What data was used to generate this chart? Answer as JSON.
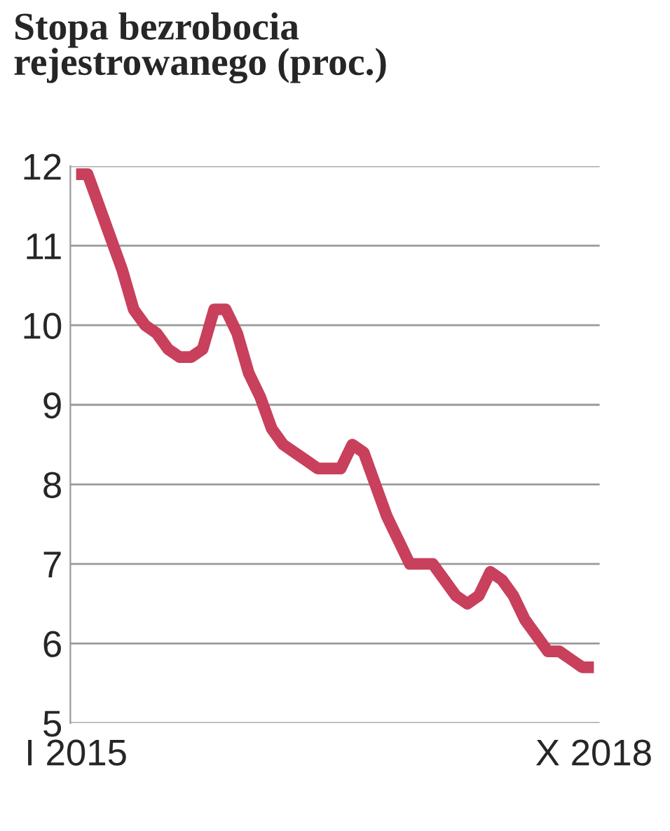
{
  "chart_data": {
    "type": "line",
    "title": "Stopa bezrobocia\nrejestrowanego (proc.)",
    "categories": [
      "I 2015",
      null,
      null,
      null,
      null,
      null,
      null,
      null,
      null,
      null,
      null,
      null,
      null,
      null,
      null,
      null,
      null,
      null,
      null,
      null,
      null,
      null,
      null,
      null,
      null,
      null,
      null,
      null,
      null,
      null,
      null,
      null,
      null,
      null,
      null,
      null,
      null,
      null,
      null,
      null,
      null,
      null,
      null,
      null,
      null,
      "X 2018"
    ],
    "series": [
      {
        "color": "#c8405c",
        "values": [
          11.9,
          11.9,
          11.5,
          11.1,
          10.7,
          10.2,
          10.0,
          9.9,
          9.7,
          9.6,
          9.6,
          9.7,
          10.2,
          10.2,
          9.9,
          9.4,
          9.1,
          8.7,
          8.5,
          8.4,
          8.3,
          8.2,
          8.2,
          8.2,
          8.5,
          8.4,
          8.0,
          7.6,
          7.3,
          7.0,
          7.0,
          7.0,
          6.8,
          6.6,
          6.5,
          6.6,
          6.9,
          6.8,
          6.6,
          6.3,
          6.1,
          5.9,
          5.9,
          5.8,
          5.7,
          5.7
        ]
      }
    ],
    "ylim": [
      5,
      12
    ],
    "yticks": [
      5,
      6,
      7,
      8,
      9,
      10,
      11,
      12
    ],
    "grid": "y",
    "line_style": "solid",
    "marker": "none"
  }
}
